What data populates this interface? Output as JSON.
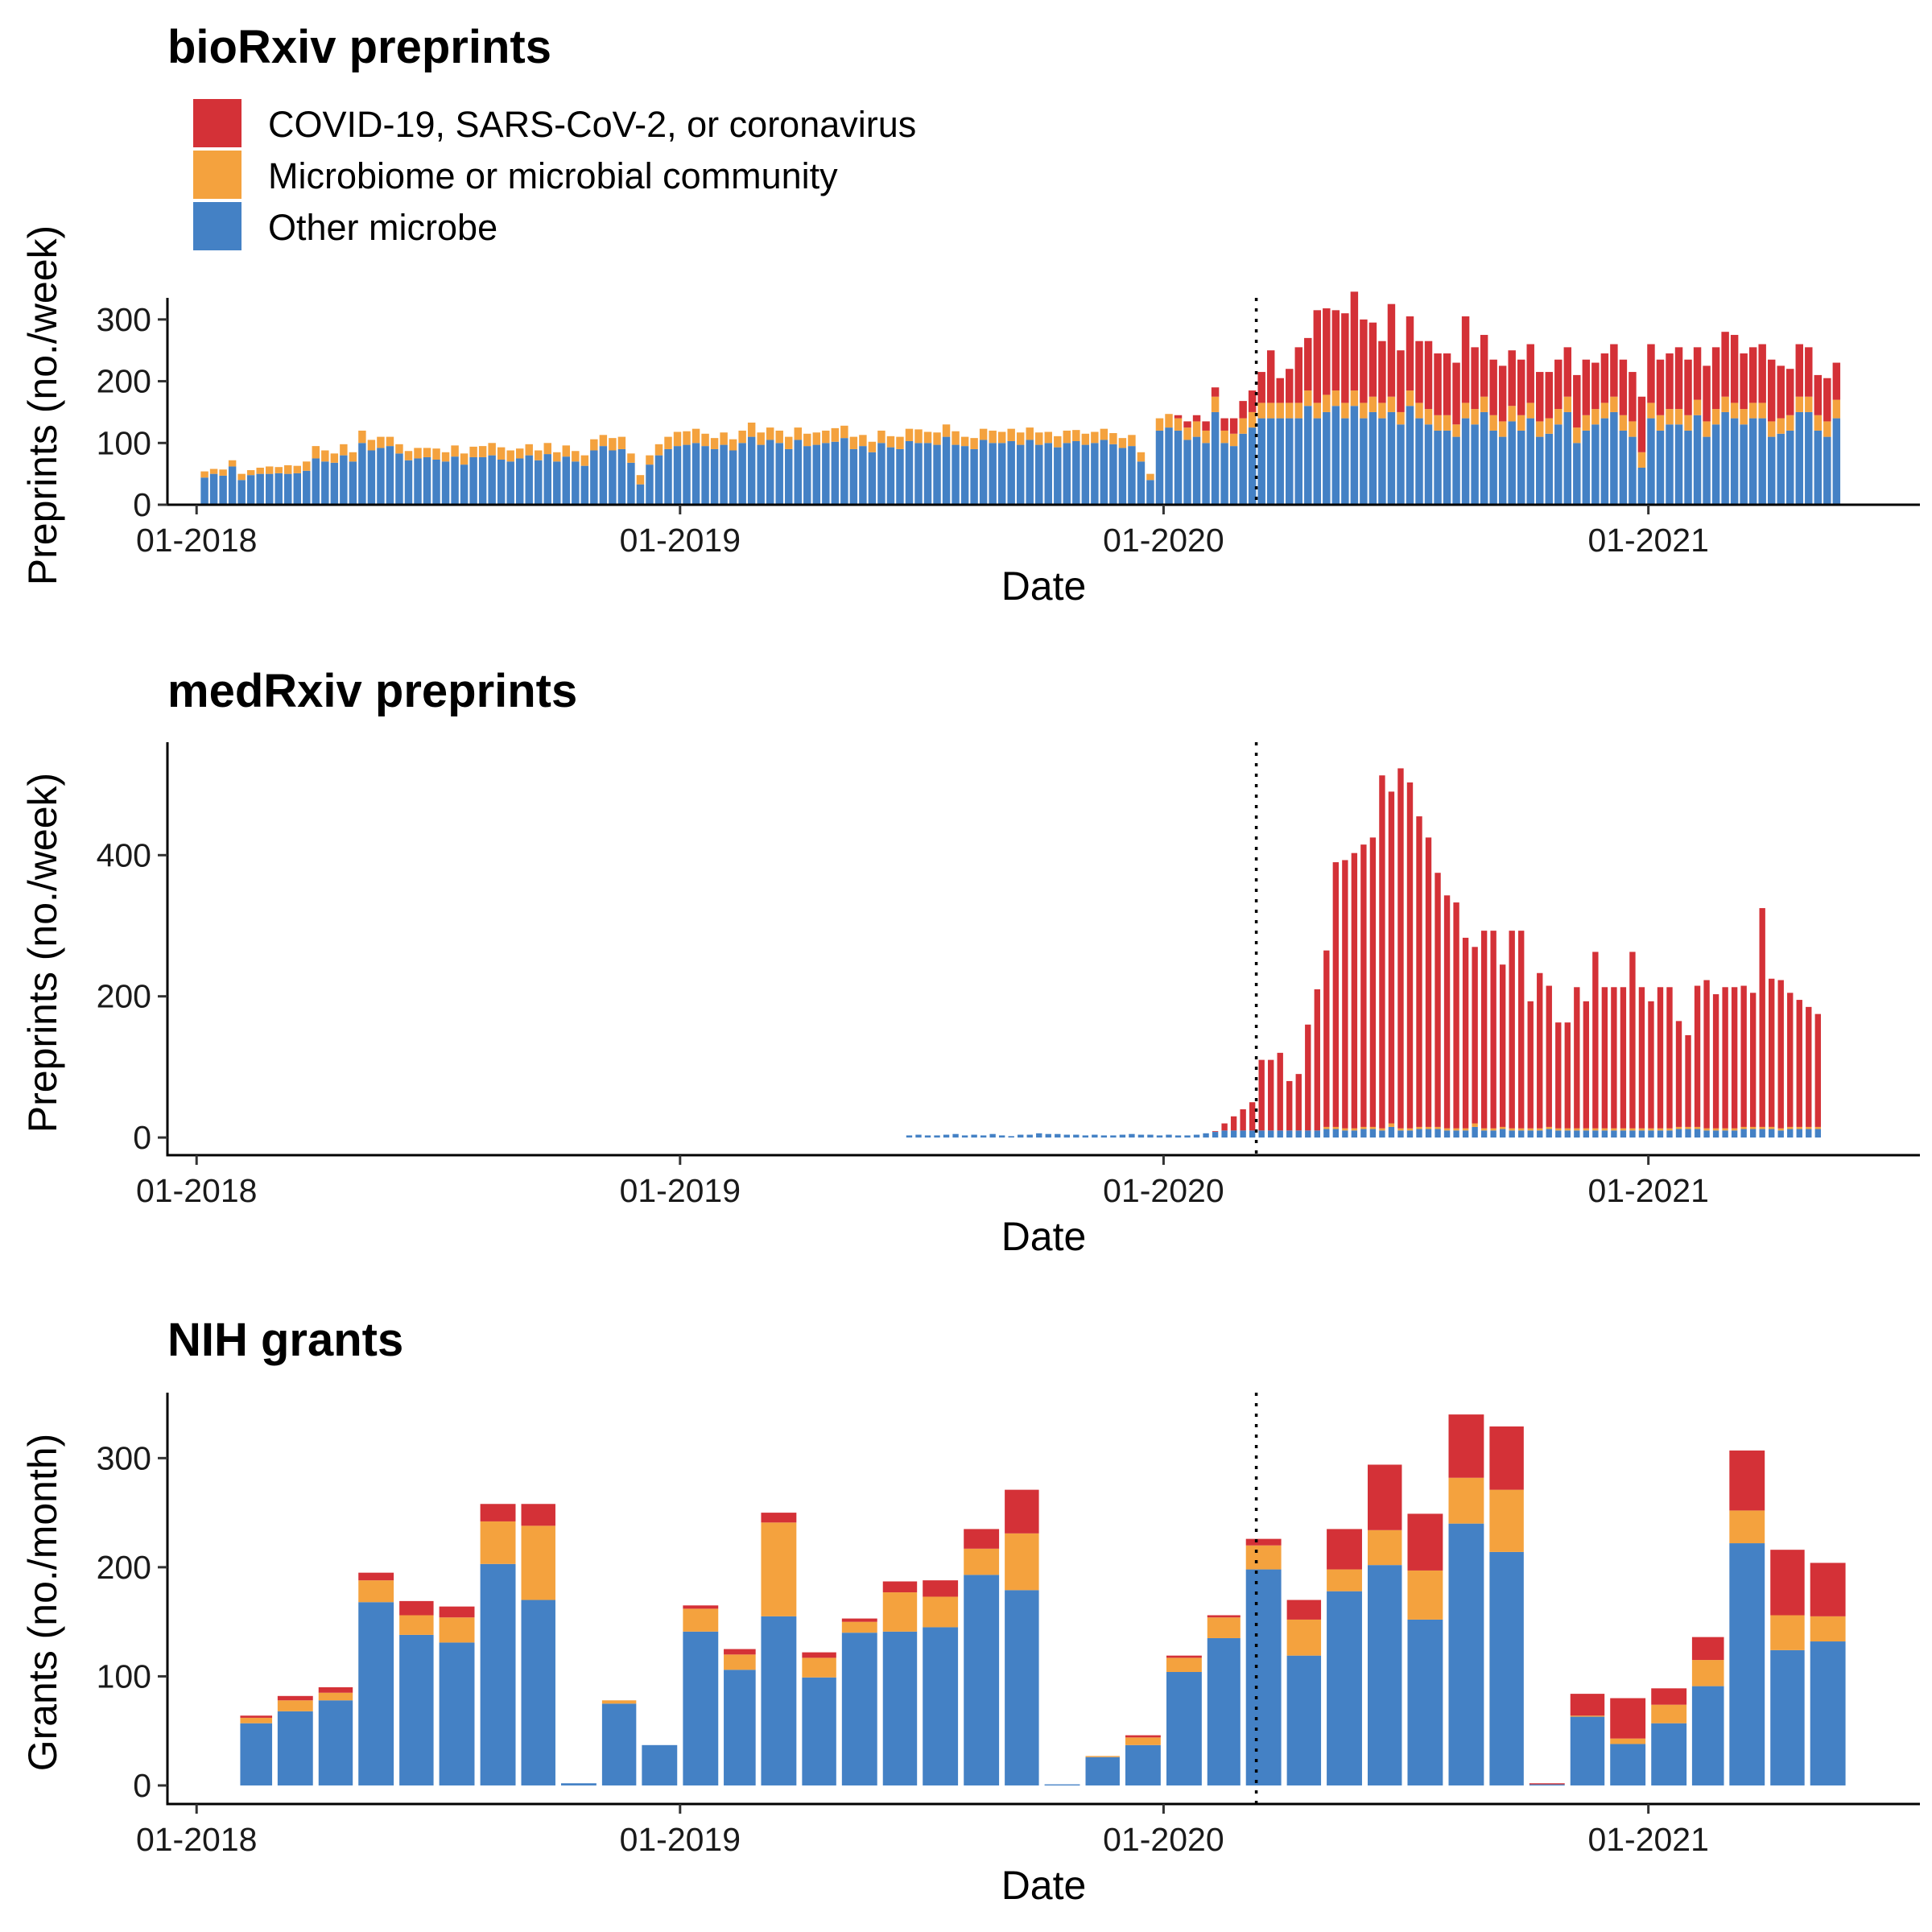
{
  "legend": [
    {
      "label": "COVID-19, SARS-CoV-2, or coronavirus",
      "color": "#d43137"
    },
    {
      "label": "Microbiome or microbial community",
      "color": "#f4a23e"
    },
    {
      "label": "Other microbe",
      "color": "#4481c5"
    }
  ],
  "x_axis": {
    "label": "Date",
    "ticks": [
      "01-2018",
      "01-2019",
      "01-2020",
      "01-2021"
    ],
    "tick_values": [
      "2018-01-01",
      "2019-01-01",
      "2020-01-01",
      "2021-01-01"
    ],
    "range": [
      "2017-12-10",
      "2021-07-25"
    ],
    "reference_line": "2020-03-11"
  },
  "chart_data": [
    {
      "type": "bar",
      "stacked": true,
      "title": "bioRxiv preprints",
      "xlabel": "Date",
      "ylabel": "Preprints (no./week)",
      "ylim": [
        0,
        335
      ],
      "yticks": [
        0,
        100,
        200,
        300
      ],
      "x_start": "2018-01-07",
      "x_step": "week",
      "series": [
        {
          "name": "Other microbe",
          "values": [
            44,
            50,
            47,
            62,
            40,
            48,
            50,
            50,
            51,
            50,
            51,
            55,
            75,
            70,
            68,
            80,
            70,
            100,
            88,
            92,
            95,
            83,
            72,
            75,
            77,
            73,
            70,
            78,
            65,
            77,
            77,
            80,
            73,
            70,
            75,
            80,
            72,
            82,
            70,
            78,
            70,
            63,
            88,
            95,
            88,
            90,
            68,
            33,
            65,
            80,
            90,
            95,
            97,
            100,
            95,
            90,
            97,
            88,
            100,
            110,
            97,
            105,
            100,
            90,
            105,
            95,
            97,
            100,
            102,
            108,
            90,
            95,
            85,
            100,
            93,
            90,
            103,
            100,
            100,
            97,
            110,
            97,
            95,
            90,
            105,
            100,
            100,
            103,
            97,
            105,
            97,
            100,
            93,
            100,
            103,
            97,
            100,
            105,
            98,
            92,
            95,
            70,
            40,
            120,
            125,
            120,
            105,
            110,
            100,
            150,
            100,
            95,
            115,
            125,
            140,
            140,
            140,
            140,
            140,
            160,
            140,
            150,
            160,
            140,
            160,
            140,
            150,
            140,
            150,
            130,
            160,
            140,
            130,
            120,
            120,
            110,
            140,
            130,
            150,
            120,
            110,
            135,
            120,
            140,
            110,
            115,
            130,
            150,
            100,
            120,
            130,
            140,
            150,
            120,
            110,
            60,
            140,
            120,
            130,
            130,
            120,
            145,
            110,
            130,
            150,
            140,
            130,
            140,
            140,
            110,
            115,
            120,
            150,
            150,
            120,
            110,
            140
          ]
        },
        {
          "name": "Microbiome or microbial community",
          "values": [
            10,
            8,
            10,
            10,
            10,
            8,
            10,
            12,
            10,
            14,
            12,
            15,
            20,
            18,
            15,
            18,
            15,
            20,
            17,
            18,
            15,
            15,
            15,
            17,
            15,
            18,
            15,
            18,
            18,
            17,
            18,
            20,
            20,
            18,
            16,
            18,
            16,
            18,
            15,
            18,
            17,
            17,
            18,
            18,
            20,
            20,
            15,
            15,
            15,
            18,
            20,
            23,
            22,
            23,
            20,
            18,
            20,
            18,
            20,
            23,
            20,
            20,
            20,
            20,
            20,
            20,
            20,
            20,
            22,
            20,
            20,
            18,
            17,
            20,
            18,
            20,
            20,
            22,
            18,
            20,
            20,
            22,
            15,
            18,
            18,
            20,
            18,
            20,
            20,
            20,
            20,
            18,
            18,
            20,
            18,
            18,
            18,
            18,
            18,
            16,
            18,
            15,
            10,
            20,
            22,
            20,
            20,
            25,
            20,
            25,
            20,
            20,
            25,
            25,
            25,
            25,
            25,
            25,
            25,
            25,
            25,
            28,
            25,
            25,
            25,
            25,
            25,
            25,
            25,
            20,
            25,
            25,
            25,
            25,
            25,
            20,
            25,
            25,
            25,
            25,
            25,
            25,
            25,
            25,
            25,
            25,
            25,
            25,
            25,
            25,
            25,
            25,
            25,
            25,
            25,
            25,
            25,
            25,
            25,
            25,
            25,
            25,
            25,
            25,
            25,
            25,
            25,
            25,
            25,
            25,
            25,
            25,
            25,
            25,
            25,
            25,
            30
          ]
        },
        {
          "name": "COVID-19, SARS-CoV-2, or coronavirus",
          "values": [
            0,
            0,
            0,
            0,
            0,
            0,
            0,
            0,
            0,
            0,
            0,
            0,
            0,
            0,
            0,
            0,
            0,
            0,
            0,
            0,
            0,
            0,
            0,
            0,
            0,
            0,
            0,
            0,
            0,
            0,
            0,
            0,
            0,
            0,
            0,
            0,
            0,
            0,
            0,
            0,
            0,
            0,
            0,
            0,
            0,
            0,
            0,
            0,
            0,
            0,
            0,
            0,
            0,
            0,
            0,
            0,
            0,
            0,
            0,
            0,
            0,
            0,
            0,
            0,
            0,
            0,
            0,
            0,
            0,
            0,
            0,
            0,
            0,
            0,
            0,
            0,
            0,
            0,
            0,
            0,
            0,
            0,
            0,
            0,
            0,
            0,
            0,
            0,
            0,
            0,
            0,
            0,
            0,
            0,
            0,
            0,
            0,
            0,
            0,
            0,
            0,
            0,
            0,
            0,
            0,
            5,
            10,
            10,
            15,
            15,
            20,
            25,
            28,
            35,
            50,
            85,
            40,
            55,
            90,
            85,
            150,
            140,
            130,
            145,
            160,
            135,
            120,
            100,
            150,
            100,
            120,
            100,
            110,
            100,
            100,
            100,
            140,
            100,
            100,
            90,
            90,
            90,
            90,
            95,
            80,
            75,
            80,
            80,
            85,
            90,
            75,
            80,
            85,
            90,
            80,
            90,
            95,
            90,
            90,
            100,
            90,
            85,
            90,
            100,
            105,
            110,
            90,
            90,
            95,
            100,
            85,
            75,
            85,
            80,
            65,
            70,
            60
          ]
        }
      ]
    },
    {
      "type": "bar",
      "stacked": true,
      "title": "medRxiv preprints",
      "xlabel": "Date",
      "ylabel": "Preprints (no./week)",
      "ylim": [
        -25,
        560
      ],
      "yticks": [
        0,
        200,
        400
      ],
      "x_start": "2019-06-23",
      "x_step": "week",
      "series": [
        {
          "name": "Other microbe",
          "values": [
            3,
            4,
            3,
            3,
            4,
            5,
            3,
            4,
            3,
            5,
            3,
            2,
            4,
            4,
            6,
            5,
            5,
            4,
            4,
            3,
            4,
            3,
            3,
            4,
            5,
            4,
            4,
            3,
            4,
            3,
            3,
            4,
            6,
            8,
            10,
            10,
            10,
            10,
            10,
            10,
            10,
            10,
            10,
            10,
            10,
            12,
            12,
            10,
            10,
            12,
            12,
            10,
            15,
            10,
            10,
            12,
            12,
            12,
            10,
            10,
            10,
            15,
            10,
            10,
            12,
            10,
            10,
            10,
            10,
            12,
            10,
            10,
            10,
            10,
            10,
            10,
            10,
            10,
            10,
            10,
            10,
            10,
            10,
            12,
            12,
            12,
            10,
            10,
            10,
            10,
            12,
            12,
            12,
            12,
            10,
            12,
            12,
            12,
            12
          ]
        },
        {
          "name": "Microbiome or microbial community",
          "values": [
            0,
            0,
            0,
            0,
            0,
            0,
            0,
            0,
            0,
            0,
            0,
            0,
            0,
            0,
            0,
            0,
            0,
            0,
            0,
            0,
            0,
            0,
            0,
            0,
            0,
            0,
            0,
            0,
            0,
            0,
            0,
            0,
            0,
            0,
            0,
            0,
            0,
            0,
            0,
            0,
            0,
            0,
            0,
            0,
            0,
            3,
            3,
            3,
            3,
            3,
            3,
            3,
            5,
            3,
            3,
            3,
            3,
            3,
            3,
            3,
            3,
            5,
            3,
            3,
            3,
            3,
            3,
            3,
            3,
            3,
            3,
            3,
            3,
            3,
            3,
            3,
            3,
            3,
            3,
            3,
            3,
            3,
            3,
            3,
            3,
            3,
            3,
            3,
            3,
            3,
            3,
            3,
            3,
            3,
            3,
            3,
            3,
            3,
            3
          ]
        },
        {
          "name": "COVID-19, SARS-CoV-2, or coronavirus",
          "values": [
            0,
            0,
            0,
            0,
            0,
            0,
            0,
            0,
            0,
            0,
            0,
            0,
            0,
            0,
            0,
            0,
            0,
            0,
            0,
            0,
            0,
            0,
            0,
            0,
            0,
            0,
            0,
            0,
            0,
            0,
            0,
            0,
            0,
            1,
            10,
            20,
            30,
            40,
            100,
            100,
            110,
            70,
            80,
            150,
            200,
            250,
            375,
            380,
            390,
            400,
            410,
            500,
            470,
            510,
            490,
            440,
            410,
            360,
            330,
            320,
            270,
            250,
            280,
            280,
            230,
            280,
            280,
            180,
            220,
            200,
            150,
            150,
            200,
            180,
            250,
            200,
            200,
            200,
            250,
            200,
            180,
            200,
            200,
            150,
            130,
            200,
            210,
            190,
            200,
            200,
            200,
            190,
            310,
            210,
            210,
            190,
            180,
            170,
            160
          ]
        }
      ]
    },
    {
      "type": "bar",
      "stacked": true,
      "title": "NIH grants",
      "xlabel": "Date",
      "ylabel": "Grants (no./month)",
      "ylim": [
        -17,
        360
      ],
      "yticks": [
        0,
        100,
        200,
        300
      ],
      "x_start": "2018-02",
      "x_step": "month",
      "series": [
        {
          "name": "Other microbe",
          "values": [
            57,
            68,
            78,
            168,
            138,
            131,
            203,
            170,
            2,
            75,
            37,
            141,
            106,
            155,
            99,
            140,
            141,
            145,
            193,
            179,
            1,
            26,
            37,
            104,
            135,
            198,
            119,
            178,
            202,
            152,
            240,
            214,
            1,
            63,
            38,
            57,
            91,
            222,
            124,
            132
          ]
        },
        {
          "name": "Microbiome or microbial community",
          "values": [
            5,
            10,
            7,
            20,
            18,
            23,
            39,
            68,
            0,
            3,
            0,
            21,
            14,
            86,
            18,
            10,
            36,
            28,
            24,
            52,
            0,
            1,
            7,
            13,
            19,
            22,
            33,
            20,
            32,
            45,
            42,
            57,
            0,
            1,
            5,
            17,
            24,
            30,
            32,
            23
          ]
        },
        {
          "name": "COVID-19, SARS-CoV-2, or coronavirus",
          "values": [
            2,
            4,
            5,
            7,
            13,
            10,
            16,
            20,
            0,
            0,
            0,
            3,
            5,
            9,
            5,
            3,
            10,
            15,
            18,
            40,
            0,
            0,
            2,
            2,
            2,
            6,
            18,
            37,
            60,
            52,
            58,
            58,
            1,
            20,
            37,
            15,
            21,
            55,
            60,
            49
          ]
        }
      ]
    }
  ]
}
